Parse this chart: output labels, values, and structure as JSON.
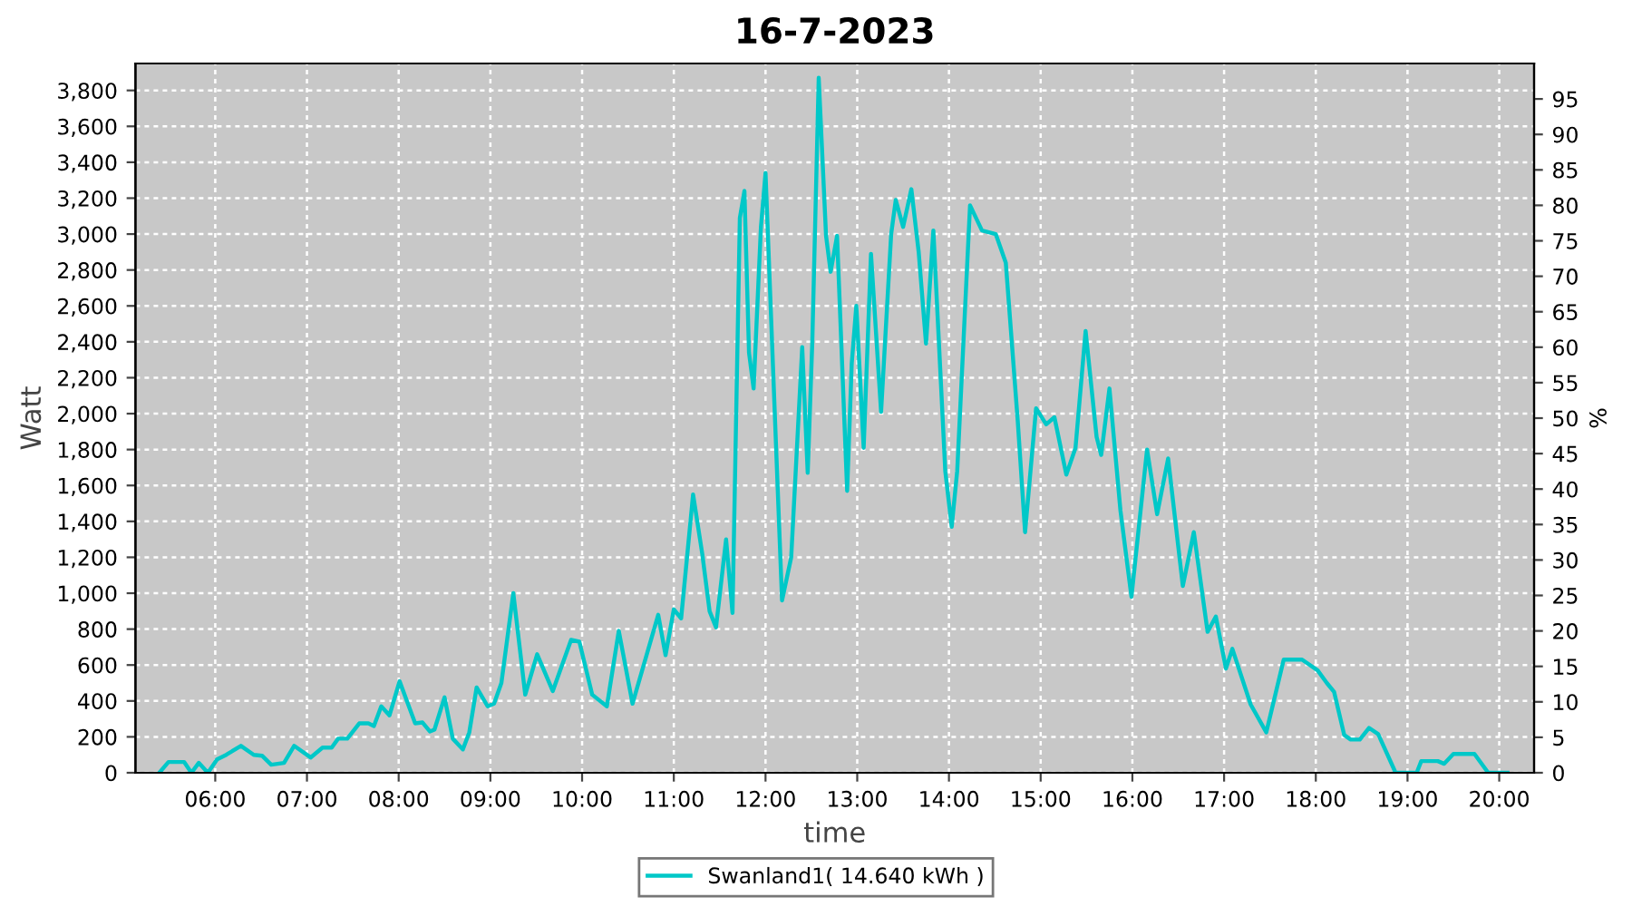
{
  "chart_data": {
    "type": "line",
    "title": "16-7-2023",
    "xlabel": "time",
    "ylabel": "Watt",
    "y2label": "%",
    "x": [
      5.39,
      5.49,
      5.66,
      5.74,
      5.82,
      5.92,
      6.02,
      6.12,
      6.28,
      6.42,
      6.51,
      6.61,
      6.75,
      6.86,
      7.04,
      7.17,
      7.27,
      7.34,
      7.44,
      7.57,
      7.67,
      7.73,
      7.81,
      7.9,
      8.01,
      8.1,
      8.18,
      8.26,
      8.34,
      8.39,
      8.5,
      8.59,
      8.7,
      8.77,
      8.85,
      8.97,
      9.04,
      9.12,
      9.25,
      9.38,
      9.51,
      9.68,
      9.88,
      9.97,
      10.11,
      10.27,
      10.4,
      10.55,
      10.83,
      10.91,
      11.0,
      11.08,
      11.21,
      11.31,
      11.39,
      11.46,
      11.57,
      11.64,
      11.72,
      11.77,
      11.82,
      11.87,
      11.95,
      12.0,
      12.12,
      12.18,
      12.28,
      12.4,
      12.46,
      12.51,
      12.58,
      12.66,
      12.71,
      12.78,
      12.89,
      12.94,
      12.99,
      13.07,
      13.15,
      13.26,
      13.37,
      13.42,
      13.5,
      13.59,
      13.67,
      13.75,
      13.83,
      13.96,
      14.03,
      14.09,
      14.23,
      14.36,
      14.51,
      14.62,
      14.75,
      14.83,
      14.95,
      15.06,
      15.15,
      15.28,
      15.38,
      15.49,
      15.61,
      15.66,
      15.75,
      15.87,
      15.99,
      16.16,
      16.27,
      16.39,
      16.55,
      16.67,
      16.82,
      16.91,
      17.02,
      17.09,
      17.29,
      17.46,
      17.65,
      17.85,
      18.02,
      18.12,
      18.2,
      18.31,
      18.38,
      18.48,
      18.58,
      18.68,
      18.87,
      19.1,
      19.15,
      19.33,
      19.4,
      19.5,
      19.73,
      19.88,
      20.09
    ],
    "series": [
      {
        "name": "Swanland1( 14.640 kWh )",
        "color": "#00c8c8",
        "values": [
          0,
          60,
          60,
          0,
          55,
          0,
          75,
          100,
          150,
          100,
          95,
          45,
          55,
          150,
          85,
          140,
          140,
          190,
          190,
          275,
          275,
          260,
          370,
          320,
          510,
          385,
          275,
          280,
          230,
          240,
          420,
          190,
          130,
          225,
          475,
          370,
          385,
          500,
          1000,
          435,
          660,
          455,
          740,
          730,
          435,
          370,
          790,
          385,
          880,
          655,
          910,
          860,
          1550,
          1220,
          900,
          810,
          1300,
          890,
          3090,
          3240,
          2340,
          2140,
          3040,
          3340,
          1750,
          960,
          1200,
          2370,
          1670,
          2400,
          3870,
          2990,
          2790,
          2990,
          1570,
          2280,
          2600,
          1810,
          2890,
          2010,
          3000,
          3190,
          3040,
          3250,
          2900,
          2390,
          3020,
          1680,
          1370,
          1680,
          3160,
          3020,
          3000,
          2840,
          1960,
          1340,
          2030,
          1940,
          1980,
          1660,
          1810,
          2460,
          1870,
          1770,
          2140,
          1460,
          980,
          1800,
          1440,
          1750,
          1040,
          1340,
          785,
          870,
          580,
          690,
          380,
          225,
          630,
          630,
          570,
          500,
          450,
          210,
          185,
          185,
          250,
          215,
          0,
          0,
          65,
          65,
          50,
          105,
          105,
          0,
          0
        ]
      }
    ],
    "xlim": [
      5.13,
      20.38
    ],
    "xticks": [
      {
        "value": 6,
        "label": "06:00"
      },
      {
        "value": 7,
        "label": "07:00"
      },
      {
        "value": 8,
        "label": "08:00"
      },
      {
        "value": 9,
        "label": "09:00"
      },
      {
        "value": 10,
        "label": "10:00"
      },
      {
        "value": 11,
        "label": "11:00"
      },
      {
        "value": 12,
        "label": "12:00"
      },
      {
        "value": 13,
        "label": "13:00"
      },
      {
        "value": 14,
        "label": "14:00"
      },
      {
        "value": 15,
        "label": "15:00"
      },
      {
        "value": 16,
        "label": "16:00"
      },
      {
        "value": 17,
        "label": "17:00"
      },
      {
        "value": 18,
        "label": "18:00"
      },
      {
        "value": 19,
        "label": "19:00"
      },
      {
        "value": 20,
        "label": "20:00"
      }
    ],
    "ylim": [
      0,
      3950
    ],
    "yticks": [
      0,
      200,
      400,
      600,
      800,
      {
        "value": 1000,
        "label": "1,000"
      },
      {
        "value": 1200,
        "label": "1,200"
      },
      {
        "value": 1400,
        "label": "1,400"
      },
      {
        "value": 1600,
        "label": "1,600"
      },
      {
        "value": 1800,
        "label": "1,800"
      },
      {
        "value": 2000,
        "label": "2,000"
      },
      {
        "value": 2200,
        "label": "2,200"
      },
      {
        "value": 2400,
        "label": "2,400"
      },
      {
        "value": 2600,
        "label": "2,600"
      },
      {
        "value": 2800,
        "label": "2,800"
      },
      {
        "value": 3000,
        "label": "3,000"
      },
      {
        "value": 3200,
        "label": "3,200"
      },
      {
        "value": 3400,
        "label": "3,400"
      },
      {
        "value": 3600,
        "label": "3,600"
      },
      {
        "value": 3800,
        "label": "3,800"
      }
    ],
    "y2lim": [
      0,
      100
    ],
    "y2ticks": [
      0,
      5,
      10,
      15,
      20,
      25,
      30,
      35,
      40,
      45,
      50,
      55,
      60,
      65,
      70,
      75,
      80,
      85,
      90,
      95
    ],
    "grid": true,
    "legend": "bottom",
    "marker": "none",
    "line_style": "solid"
  }
}
